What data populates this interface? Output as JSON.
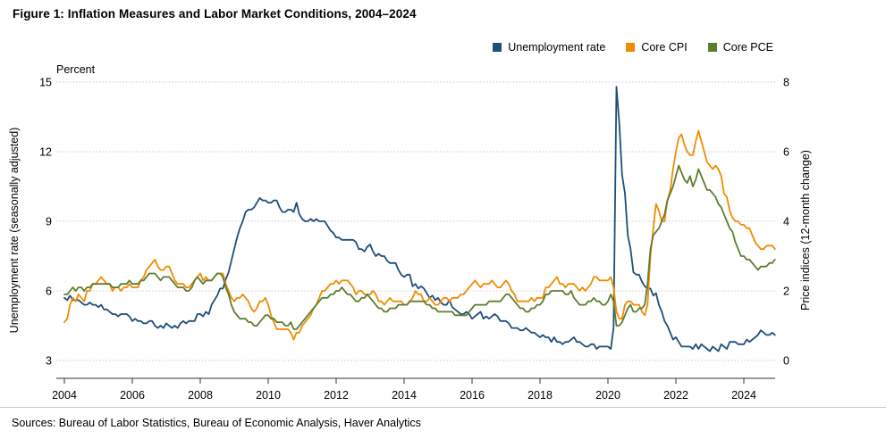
{
  "header": {
    "title": "Figure 1: Inflation Measures and Labor Market Conditions, 2004–2024"
  },
  "legend": {
    "items": [
      {
        "label": "Unemployment rate",
        "color": "#1F4E79"
      },
      {
        "label": "Core CPI",
        "color": "#F08C00"
      },
      {
        "label": "Core PCE",
        "color": "#5E7D2E"
      }
    ]
  },
  "chart_data": {
    "type": "line",
    "title": "Figure 1: Inflation Measures and Labor Market Conditions, 2004–2024",
    "frequency": "monthly",
    "x_start_year": 2004,
    "x_end_year": 2024,
    "x_tick_labels": [
      "2004",
      "2006",
      "2008",
      "2010",
      "2012",
      "2014",
      "2016",
      "2018",
      "2020",
      "2022",
      "2024"
    ],
    "grid": "horizontal-dotted",
    "legend_position": "top-right",
    "left_axis": {
      "label": "Unemployment rate (seasonally adjusted)",
      "unit_label": "Percent",
      "ticks": [
        3,
        6,
        9,
        12,
        15
      ],
      "range": [
        3,
        15
      ]
    },
    "right_axis": {
      "label": "Price indices (12-month change)",
      "ticks": [
        0,
        2,
        4,
        6,
        8
      ],
      "range": [
        0,
        8
      ]
    },
    "series": [
      {
        "name": "Unemployment rate",
        "axis": "left",
        "color": "#1F4E79",
        "values": [
          5.7,
          5.6,
          5.8,
          5.6,
          5.6,
          5.6,
          5.5,
          5.4,
          5.4,
          5.5,
          5.4,
          5.4,
          5.3,
          5.4,
          5.2,
          5.2,
          5.1,
          5.0,
          5.0,
          4.9,
          5.0,
          5.0,
          5.0,
          4.9,
          4.7,
          4.8,
          4.7,
          4.7,
          4.6,
          4.6,
          4.7,
          4.7,
          4.5,
          4.4,
          4.5,
          4.4,
          4.6,
          4.5,
          4.4,
          4.5,
          4.4,
          4.6,
          4.7,
          4.6,
          4.7,
          4.7,
          4.7,
          5.0,
          5.0,
          4.9,
          5.1,
          5.0,
          5.4,
          5.6,
          5.8,
          6.1,
          6.1,
          6.5,
          6.8,
          7.3,
          7.8,
          8.3,
          8.7,
          9.0,
          9.4,
          9.5,
          9.5,
          9.6,
          9.8,
          10.0,
          9.9,
          9.9,
          9.8,
          9.8,
          9.9,
          9.9,
          9.6,
          9.4,
          9.4,
          9.5,
          9.5,
          9.4,
          9.8,
          9.3,
          9.1,
          9.0,
          9.0,
          9.1,
          9.0,
          9.1,
          9.0,
          9.0,
          9.0,
          8.8,
          8.6,
          8.5,
          8.3,
          8.3,
          8.2,
          8.2,
          8.2,
          8.2,
          8.2,
          8.1,
          7.8,
          7.8,
          7.7,
          7.9,
          8.0,
          7.7,
          7.5,
          7.6,
          7.5,
          7.5,
          7.3,
          7.2,
          7.2,
          7.2,
          6.9,
          6.7,
          6.6,
          6.7,
          6.7,
          6.2,
          6.3,
          6.1,
          6.2,
          6.1,
          5.9,
          5.7,
          5.8,
          5.6,
          5.7,
          5.5,
          5.4,
          5.4,
          5.6,
          5.3,
          5.2,
          5.1,
          5.0,
          5.0,
          5.1,
          5.0,
          4.8,
          4.9,
          5.0,
          5.1,
          4.8,
          4.9,
          4.8,
          4.9,
          5.0,
          4.9,
          4.7,
          4.7,
          4.7,
          4.6,
          4.4,
          4.4,
          4.4,
          4.3,
          4.3,
          4.4,
          4.3,
          4.2,
          4.2,
          4.1,
          4.0,
          4.1,
          4.0,
          4.0,
          3.8,
          4.0,
          3.8,
          3.8,
          3.7,
          3.8,
          3.8,
          3.9,
          4.0,
          3.8,
          3.8,
          3.7,
          3.6,
          3.6,
          3.7,
          3.7,
          3.5,
          3.6,
          3.6,
          3.6,
          3.6,
          3.5,
          4.4,
          14.8,
          13.2,
          11.0,
          10.2,
          8.4,
          7.8,
          6.8,
          6.7,
          6.7,
          6.4,
          6.2,
          6.1,
          6.1,
          5.8,
          5.9,
          5.4,
          5.1,
          4.7,
          4.5,
          4.2,
          3.9,
          4.0,
          3.8,
          3.6,
          3.6,
          3.6,
          3.6,
          3.5,
          3.7,
          3.5,
          3.7,
          3.6,
          3.5,
          3.4,
          3.6,
          3.5,
          3.4,
          3.7,
          3.6,
          3.5,
          3.8,
          3.8,
          3.8,
          3.7,
          3.7,
          3.7,
          3.9,
          3.8,
          3.9,
          4.0,
          4.1,
          4.3,
          4.2,
          4.1,
          4.1,
          4.2,
          4.1
        ]
      },
      {
        "name": "Core CPI",
        "axis": "right",
        "color": "#F08C00",
        "values": [
          1.1,
          1.2,
          1.6,
          1.8,
          1.7,
          1.9,
          1.8,
          1.7,
          2.0,
          2.0,
          2.2,
          2.2,
          2.3,
          2.4,
          2.3,
          2.2,
          2.2,
          2.0,
          2.1,
          2.1,
          2.0,
          2.1,
          2.1,
          2.2,
          2.1,
          2.1,
          2.1,
          2.3,
          2.4,
          2.6,
          2.7,
          2.8,
          2.9,
          2.7,
          2.6,
          2.6,
          2.7,
          2.7,
          2.5,
          2.3,
          2.2,
          2.2,
          2.2,
          2.1,
          2.1,
          2.2,
          2.3,
          2.4,
          2.5,
          2.3,
          2.4,
          2.3,
          2.3,
          2.4,
          2.5,
          2.5,
          2.5,
          2.2,
          2.0,
          1.8,
          1.7,
          1.8,
          1.8,
          1.9,
          1.8,
          1.7,
          1.5,
          1.4,
          1.5,
          1.7,
          1.7,
          1.8,
          1.6,
          1.3,
          1.1,
          0.9,
          0.9,
          0.9,
          0.9,
          0.9,
          0.8,
          0.6,
          0.8,
          0.8,
          1.0,
          1.1,
          1.2,
          1.3,
          1.5,
          1.6,
          1.8,
          2.0,
          2.0,
          2.1,
          2.2,
          2.2,
          2.3,
          2.2,
          2.3,
          2.3,
          2.3,
          2.2,
          2.1,
          1.9,
          2.0,
          2.0,
          1.9,
          1.9,
          1.9,
          2.0,
          1.9,
          1.7,
          1.7,
          1.6,
          1.7,
          1.8,
          1.7,
          1.7,
          1.7,
          1.7,
          1.6,
          1.6,
          1.7,
          1.8,
          2.0,
          1.9,
          1.9,
          1.7,
          1.7,
          1.8,
          1.7,
          1.6,
          1.6,
          1.7,
          1.8,
          1.8,
          1.7,
          1.8,
          1.8,
          1.8,
          1.9,
          1.9,
          2.0,
          2.1,
          2.2,
          2.3,
          2.2,
          2.1,
          2.2,
          2.2,
          2.2,
          2.3,
          2.2,
          2.1,
          2.1,
          2.2,
          2.3,
          2.2,
          2.0,
          1.9,
          1.7,
          1.7,
          1.7,
          1.7,
          1.7,
          1.8,
          1.7,
          1.8,
          1.8,
          1.8,
          2.1,
          2.1,
          2.2,
          2.3,
          2.4,
          2.2,
          2.2,
          2.1,
          2.2,
          2.2,
          2.2,
          2.1,
          2.0,
          2.1,
          2.0,
          2.1,
          2.2,
          2.4,
          2.4,
          2.3,
          2.3,
          2.3,
          2.3,
          2.4,
          2.1,
          1.4,
          1.2,
          1.2,
          1.6,
          1.7,
          1.7,
          1.6,
          1.6,
          1.6,
          1.4,
          1.3,
          1.6,
          3.0,
          3.8,
          4.5,
          4.3,
          4.0,
          4.0,
          4.6,
          4.9,
          5.5,
          6.0,
          6.4,
          6.5,
          6.2,
          6.0,
          5.9,
          5.9,
          6.3,
          6.6,
          6.3,
          6.0,
          5.7,
          5.6,
          5.5,
          5.6,
          5.5,
          5.3,
          4.8,
          4.7,
          4.3,
          4.1,
          4.0,
          4.0,
          3.9,
          3.9,
          3.8,
          3.8,
          3.6,
          3.4,
          3.3,
          3.2,
          3.2,
          3.3,
          3.3,
          3.3,
          3.2
        ]
      },
      {
        "name": "Core PCE",
        "axis": "right",
        "color": "#5E7D2E",
        "values": [
          1.9,
          1.9,
          2.0,
          2.1,
          2.0,
          2.1,
          2.1,
          2.0,
          2.1,
          2.1,
          2.2,
          2.2,
          2.2,
          2.2,
          2.2,
          2.2,
          2.2,
          2.1,
          2.1,
          2.1,
          2.2,
          2.2,
          2.2,
          2.3,
          2.2,
          2.2,
          2.2,
          2.3,
          2.3,
          2.4,
          2.5,
          2.5,
          2.5,
          2.4,
          2.3,
          2.4,
          2.4,
          2.4,
          2.3,
          2.2,
          2.1,
          2.1,
          2.1,
          2.0,
          2.0,
          2.1,
          2.3,
          2.4,
          2.3,
          2.2,
          2.3,
          2.3,
          2.3,
          2.4,
          2.5,
          2.5,
          2.4,
          2.1,
          1.9,
          1.6,
          1.4,
          1.3,
          1.2,
          1.2,
          1.2,
          1.1,
          1.1,
          1.0,
          1.0,
          1.1,
          1.2,
          1.3,
          1.3,
          1.2,
          1.2,
          1.1,
          1.1,
          1.1,
          1.0,
          1.0,
          1.1,
          0.9,
          0.9,
          1.0,
          1.1,
          1.2,
          1.3,
          1.4,
          1.5,
          1.6,
          1.7,
          1.8,
          1.8,
          1.8,
          1.9,
          1.9,
          2.0,
          2.0,
          2.1,
          2.0,
          1.9,
          1.9,
          1.8,
          1.7,
          1.7,
          1.8,
          1.8,
          1.9,
          1.8,
          1.7,
          1.6,
          1.5,
          1.5,
          1.4,
          1.4,
          1.5,
          1.5,
          1.5,
          1.6,
          1.6,
          1.6,
          1.6,
          1.7,
          1.7,
          1.7,
          1.7,
          1.7,
          1.7,
          1.6,
          1.6,
          1.5,
          1.5,
          1.4,
          1.4,
          1.4,
          1.4,
          1.4,
          1.4,
          1.3,
          1.3,
          1.3,
          1.3,
          1.3,
          1.4,
          1.5,
          1.6,
          1.6,
          1.6,
          1.6,
          1.6,
          1.7,
          1.7,
          1.7,
          1.7,
          1.7,
          1.8,
          1.9,
          1.9,
          1.8,
          1.7,
          1.6,
          1.5,
          1.5,
          1.4,
          1.4,
          1.5,
          1.5,
          1.6,
          1.6,
          1.7,
          1.9,
          1.9,
          2.0,
          2.0,
          2.0,
          2.0,
          2.0,
          1.9,
          1.9,
          2.0,
          1.8,
          1.7,
          1.6,
          1.6,
          1.6,
          1.7,
          1.7,
          1.8,
          1.7,
          1.7,
          1.6,
          1.6,
          1.7,
          1.9,
          1.7,
          1.0,
          1.0,
          1.1,
          1.3,
          1.5,
          1.6,
          1.4,
          1.4,
          1.5,
          1.5,
          1.6,
          2.2,
          3.2,
          3.6,
          3.7,
          3.8,
          4.0,
          4.2,
          4.6,
          4.8,
          5.0,
          5.3,
          5.6,
          5.4,
          5.2,
          5.1,
          5.3,
          5.0,
          5.2,
          5.5,
          5.3,
          5.1,
          4.9,
          4.9,
          4.8,
          4.7,
          4.5,
          4.4,
          4.2,
          4.0,
          3.8,
          3.7,
          3.4,
          3.2,
          3.0,
          3.0,
          2.9,
          2.9,
          2.8,
          2.7,
          2.6,
          2.7,
          2.7,
          2.7,
          2.8,
          2.8,
          2.9
        ]
      }
    ]
  },
  "footer": {
    "sources": "Sources: Bureau of Labor Statistics, Bureau of Economic Analysis, Haver Analytics"
  }
}
